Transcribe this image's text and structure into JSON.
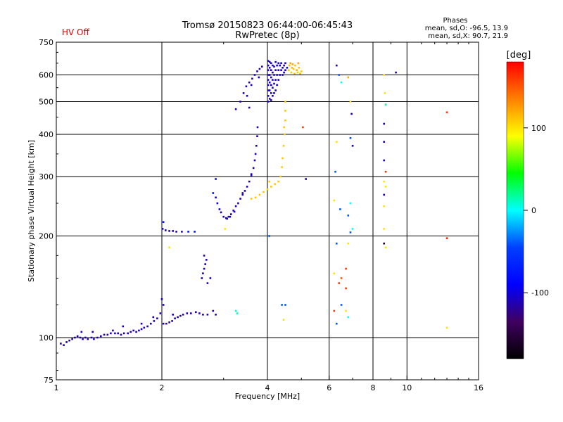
{
  "status": {
    "hv_label": "HV Off",
    "hv_color": "#e00000"
  },
  "header": {
    "title_line1": "Tromsø 20150823 06:44:00-06:45:43",
    "title_line2": "RwPretec (8p)"
  },
  "phase_box": {
    "heading": "Phases",
    "line_O": "mean, sd,O: -96.5, 13.9",
    "line_X": "mean, sd,X:  90.7, 21.9"
  },
  "chart_data": {
    "type": "scatter",
    "title": "Tromsø 20150823 06:44:00-06:45:43",
    "subtitle": "RwPretec (8p)",
    "xlabel": "Frequency [MHz]",
    "ylabel": "Stationary phase Virtual Height [km]",
    "x_scale": "log",
    "y_scale": "log",
    "xlim": [
      1,
      16
    ],
    "ylim": [
      75,
      750
    ],
    "x_ticks": [
      1,
      2,
      4,
      6,
      8,
      10,
      16
    ],
    "y_ticks": [
      75,
      100,
      200,
      300,
      400,
      500,
      600,
      750
    ],
    "x_gridlines": [
      2,
      4,
      6,
      8,
      10
    ],
    "y_gridlines": [
      100,
      200,
      300,
      400,
      500,
      600
    ],
    "grid": true,
    "colorbar": {
      "label": "[deg]",
      "range": [
        -180,
        180
      ],
      "ticks": [
        100,
        0,
        -100
      ],
      "stops": [
        "#ff0000",
        "#ff8000",
        "#ffff00",
        "#00ff00",
        "#00ffff",
        "#0040ff",
        "#0000ff",
        "#400060",
        "#000000"
      ]
    },
    "points": [
      [
        1.03,
        96,
        -110
      ],
      [
        1.05,
        95,
        -110
      ],
      [
        1.07,
        97,
        -110
      ],
      [
        1.09,
        98,
        -110
      ],
      [
        1.11,
        99,
        -110
      ],
      [
        1.13,
        100,
        -110
      ],
      [
        1.15,
        101,
        -110
      ],
      [
        1.17,
        100,
        -110
      ],
      [
        1.19,
        99,
        -110
      ],
      [
        1.21,
        100,
        -110
      ],
      [
        1.23,
        99,
        -110
      ],
      [
        1.26,
        100,
        -110
      ],
      [
        1.28,
        99,
        -110
      ],
      [
        1.31,
        100,
        -110
      ],
      [
        1.34,
        101,
        -110
      ],
      [
        1.37,
        102,
        -110
      ],
      [
        1.4,
        102,
        -110
      ],
      [
        1.43,
        103,
        -110
      ],
      [
        1.47,
        103,
        -110
      ],
      [
        1.5,
        103,
        -110
      ],
      [
        1.53,
        102,
        -110
      ],
      [
        1.56,
        103,
        -110
      ],
      [
        1.6,
        103,
        -110
      ],
      [
        1.63,
        104,
        -110
      ],
      [
        1.66,
        105,
        -110
      ],
      [
        1.69,
        104,
        -110
      ],
      [
        1.72,
        105,
        -110
      ],
      [
        1.75,
        106,
        -110
      ],
      [
        1.78,
        107,
        -110
      ],
      [
        1.82,
        108,
        -110
      ],
      [
        1.86,
        110,
        -110
      ],
      [
        1.9,
        112,
        -110
      ],
      [
        1.94,
        114,
        -110
      ],
      [
        1.98,
        118,
        -110
      ],
      [
        2.02,
        110,
        -110
      ],
      [
        2.06,
        110,
        -110
      ],
      [
        2.1,
        111,
        -110
      ],
      [
        2.14,
        112,
        -110
      ],
      [
        2.18,
        114,
        -110
      ],
      [
        2.22,
        115,
        -110
      ],
      [
        2.26,
        116,
        -110
      ],
      [
        2.3,
        117,
        -110
      ],
      [
        2.36,
        118,
        -110
      ],
      [
        2.42,
        118,
        -110
      ],
      [
        2.5,
        119,
        -110
      ],
      [
        2.56,
        118,
        -110
      ],
      [
        2.62,
        117,
        -110
      ],
      [
        2.7,
        117,
        -110
      ],
      [
        1.18,
        104,
        -110
      ],
      [
        1.27,
        104,
        -110
      ],
      [
        1.45,
        105,
        -110
      ],
      [
        1.55,
        108,
        -110
      ],
      [
        1.75,
        110,
        -110
      ],
      [
        1.89,
        115,
        -110
      ],
      [
        2.0,
        130,
        -110
      ],
      [
        2.02,
        125,
        -110
      ],
      [
        2.15,
        117,
        -110
      ],
      [
        2.6,
        150,
        -110
      ],
      [
        2.62,
        155,
        -110
      ],
      [
        2.64,
        160,
        -110
      ],
      [
        2.66,
        165,
        -110
      ],
      [
        2.68,
        170,
        -110
      ],
      [
        2.64,
        175,
        -110
      ],
      [
        2.7,
        145,
        -110
      ],
      [
        2.75,
        150,
        -110
      ],
      [
        2.8,
        120,
        -110
      ],
      [
        2.85,
        117,
        -110
      ],
      [
        2.01,
        210,
        -110
      ],
      [
        2.05,
        208,
        -110
      ],
      [
        2.1,
        207,
        -110
      ],
      [
        2.15,
        207,
        -110
      ],
      [
        2.2,
        206,
        -110
      ],
      [
        2.28,
        206,
        -110
      ],
      [
        2.38,
        206,
        -80
      ],
      [
        2.48,
        206,
        -80
      ],
      [
        2.02,
        220,
        -80
      ],
      [
        2.1,
        185,
        100
      ],
      [
        2.8,
        268,
        -80
      ],
      [
        2.85,
        260,
        -100
      ],
      [
        2.88,
        250,
        -100
      ],
      [
        2.92,
        240,
        -100
      ],
      [
        2.95,
        235,
        -110
      ],
      [
        3.0,
        228,
        -110
      ],
      [
        3.05,
        226,
        -110
      ],
      [
        3.1,
        228,
        -110
      ],
      [
        3.15,
        232,
        -110
      ],
      [
        3.2,
        238,
        -110
      ],
      [
        3.25,
        245,
        -110
      ],
      [
        3.3,
        250,
        -110
      ],
      [
        3.35,
        258,
        -110
      ],
      [
        3.4,
        265,
        -110
      ],
      [
        3.45,
        272,
        -110
      ],
      [
        3.5,
        280,
        -110
      ],
      [
        3.55,
        290,
        -110
      ],
      [
        3.6,
        302,
        -110
      ],
      [
        3.65,
        318,
        -110
      ],
      [
        3.68,
        335,
        -110
      ],
      [
        3.7,
        350,
        -110
      ],
      [
        3.72,
        370,
        -110
      ],
      [
        3.74,
        395,
        -110
      ],
      [
        3.75,
        420,
        -110
      ],
      [
        3.07,
        225,
        -110
      ],
      [
        3.13,
        228,
        -110
      ],
      [
        3.22,
        236,
        -110
      ],
      [
        3.4,
        268,
        -110
      ],
      [
        3.6,
        305,
        -110
      ],
      [
        2.85,
        295,
        -80
      ],
      [
        3.03,
        210,
        100
      ],
      [
        3.25,
        475,
        -110
      ],
      [
        3.35,
        500,
        -110
      ],
      [
        3.42,
        530,
        -110
      ],
      [
        3.48,
        555,
        -110
      ],
      [
        3.55,
        570,
        -110
      ],
      [
        3.62,
        585,
        -110
      ],
      [
        3.68,
        600,
        -110
      ],
      [
        3.74,
        615,
        -110
      ],
      [
        3.8,
        625,
        -110
      ],
      [
        3.86,
        635,
        -110
      ],
      [
        3.55,
        480,
        -110
      ],
      [
        3.5,
        520,
        -110
      ],
      [
        3.6,
        560,
        -110
      ],
      [
        3.78,
        590,
        -110
      ],
      [
        4.02,
        500,
        -110
      ],
      [
        4.02,
        520,
        -110
      ],
      [
        4.02,
        540,
        -110
      ],
      [
        4.02,
        560,
        -110
      ],
      [
        4.02,
        580,
        -110
      ],
      [
        4.02,
        600,
        -110
      ],
      [
        4.02,
        620,
        -110
      ],
      [
        4.02,
        640,
        -110
      ],
      [
        4.02,
        660,
        -110
      ],
      [
        4.06,
        510,
        -110
      ],
      [
        4.06,
        540,
        -110
      ],
      [
        4.06,
        570,
        -110
      ],
      [
        4.06,
        600,
        -110
      ],
      [
        4.06,
        630,
        -110
      ],
      [
        4.06,
        655,
        -110
      ],
      [
        4.1,
        505,
        -110
      ],
      [
        4.1,
        530,
        -110
      ],
      [
        4.1,
        560,
        -110
      ],
      [
        4.1,
        590,
        -110
      ],
      [
        4.1,
        620,
        -110
      ],
      [
        4.1,
        650,
        -110
      ],
      [
        4.14,
        520,
        -110
      ],
      [
        4.14,
        550,
        -110
      ],
      [
        4.14,
        580,
        -110
      ],
      [
        4.14,
        610,
        -110
      ],
      [
        4.14,
        640,
        -110
      ],
      [
        4.18,
        530,
        -110
      ],
      [
        4.18,
        565,
        -110
      ],
      [
        4.18,
        600,
        -110
      ],
      [
        4.18,
        635,
        -110
      ],
      [
        4.22,
        540,
        -110
      ],
      [
        4.22,
        580,
        -110
      ],
      [
        4.22,
        620,
        -110
      ],
      [
        4.22,
        655,
        -110
      ],
      [
        4.26,
        560,
        -110
      ],
      [
        4.26,
        600,
        -110
      ],
      [
        4.26,
        640,
        -110
      ],
      [
        4.3,
        580,
        -110
      ],
      [
        4.3,
        620,
        -110
      ],
      [
        4.3,
        650,
        -110
      ],
      [
        4.34,
        600,
        -110
      ],
      [
        4.34,
        640,
        -110
      ],
      [
        4.38,
        620,
        -110
      ],
      [
        4.38,
        650,
        -110
      ],
      [
        4.42,
        630,
        -110
      ],
      [
        4.42,
        600,
        -110
      ],
      [
        4.46,
        640,
        -110
      ],
      [
        4.46,
        610,
        -110
      ],
      [
        4.5,
        650,
        -110
      ],
      [
        4.5,
        620,
        -110
      ],
      [
        4.55,
        630,
        -110
      ],
      [
        4.6,
        620,
        110
      ],
      [
        4.62,
        640,
        115
      ],
      [
        4.65,
        650,
        120
      ],
      [
        4.68,
        610,
        110
      ],
      [
        4.7,
        630,
        115
      ],
      [
        4.72,
        645,
        120
      ],
      [
        4.75,
        625,
        110
      ],
      [
        4.78,
        605,
        115
      ],
      [
        4.8,
        640,
        110
      ],
      [
        4.85,
        620,
        115
      ],
      [
        4.88,
        610,
        110
      ],
      [
        4.9,
        650,
        120
      ],
      [
        4.92,
        630,
        110
      ],
      [
        4.96,
        605,
        115
      ],
      [
        5.0,
        615,
        110
      ],
      [
        4.5,
        500,
        110
      ],
      [
        4.5,
        470,
        110
      ],
      [
        4.5,
        440,
        110
      ],
      [
        4.48,
        400,
        110
      ],
      [
        4.45,
        370,
        110
      ],
      [
        4.42,
        340,
        110
      ],
      [
        4.4,
        320,
        110
      ],
      [
        4.36,
        300,
        110
      ],
      [
        4.3,
        290,
        110
      ],
      [
        4.2,
        285,
        110
      ],
      [
        4.1,
        280,
        110
      ],
      [
        4.0,
        275,
        110
      ],
      [
        3.9,
        270,
        110
      ],
      [
        3.8,
        265,
        110
      ],
      [
        3.7,
        260,
        110
      ],
      [
        3.6,
        258,
        110
      ],
      [
        4.05,
        290,
        110
      ],
      [
        4.46,
        420,
        110
      ],
      [
        3.25,
        120,
        10
      ],
      [
        3.28,
        118,
        10
      ],
      [
        4.05,
        200,
        -40
      ],
      [
        4.4,
        125,
        -40
      ],
      [
        4.5,
        125,
        -40
      ],
      [
        4.45,
        113,
        100
      ],
      [
        5.05,
        420,
        160
      ],
      [
        5.15,
        295,
        -110
      ],
      [
        6.3,
        640,
        -110
      ],
      [
        6.4,
        600,
        -40
      ],
      [
        6.5,
        570,
        0
      ],
      [
        6.8,
        590,
        120
      ],
      [
        6.9,
        500,
        100
      ],
      [
        6.95,
        460,
        -110
      ],
      [
        7.0,
        370,
        -110
      ],
      [
        6.9,
        390,
        -40
      ],
      [
        6.3,
        380,
        100
      ],
      [
        6.25,
        310,
        -40
      ],
      [
        6.9,
        250,
        0
      ],
      [
        6.2,
        255,
        100
      ],
      [
        6.45,
        240,
        -40
      ],
      [
        6.8,
        230,
        -40
      ],
      [
        6.9,
        205,
        -40
      ],
      [
        7.0,
        210,
        0
      ],
      [
        6.3,
        190,
        -40
      ],
      [
        6.8,
        190,
        100
      ],
      [
        6.7,
        160,
        160
      ],
      [
        6.2,
        155,
        100
      ],
      [
        6.5,
        150,
        150
      ],
      [
        6.4,
        145,
        160
      ],
      [
        6.7,
        140,
        160
      ],
      [
        6.2,
        120,
        160
      ],
      [
        6.8,
        115,
        0
      ],
      [
        6.3,
        110,
        -40
      ],
      [
        6.7,
        120,
        100
      ],
      [
        6.5,
        125,
        -40
      ],
      [
        8.6,
        600,
        100
      ],
      [
        8.65,
        530,
        100
      ],
      [
        8.7,
        490,
        20
      ],
      [
        8.6,
        430,
        -110
      ],
      [
        8.6,
        380,
        -110
      ],
      [
        8.6,
        335,
        -110
      ],
      [
        8.7,
        310,
        160
      ],
      [
        8.6,
        290,
        100
      ],
      [
        8.7,
        280,
        100
      ],
      [
        8.6,
        265,
        -110
      ],
      [
        8.6,
        245,
        100
      ],
      [
        8.6,
        210,
        100
      ],
      [
        8.6,
        190,
        -160
      ],
      [
        8.7,
        185,
        100
      ],
      [
        9.3,
        610,
        -110
      ],
      [
        13.0,
        465,
        160
      ],
      [
        13.0,
        197,
        170
      ],
      [
        13.0,
        107,
        100
      ]
    ]
  }
}
